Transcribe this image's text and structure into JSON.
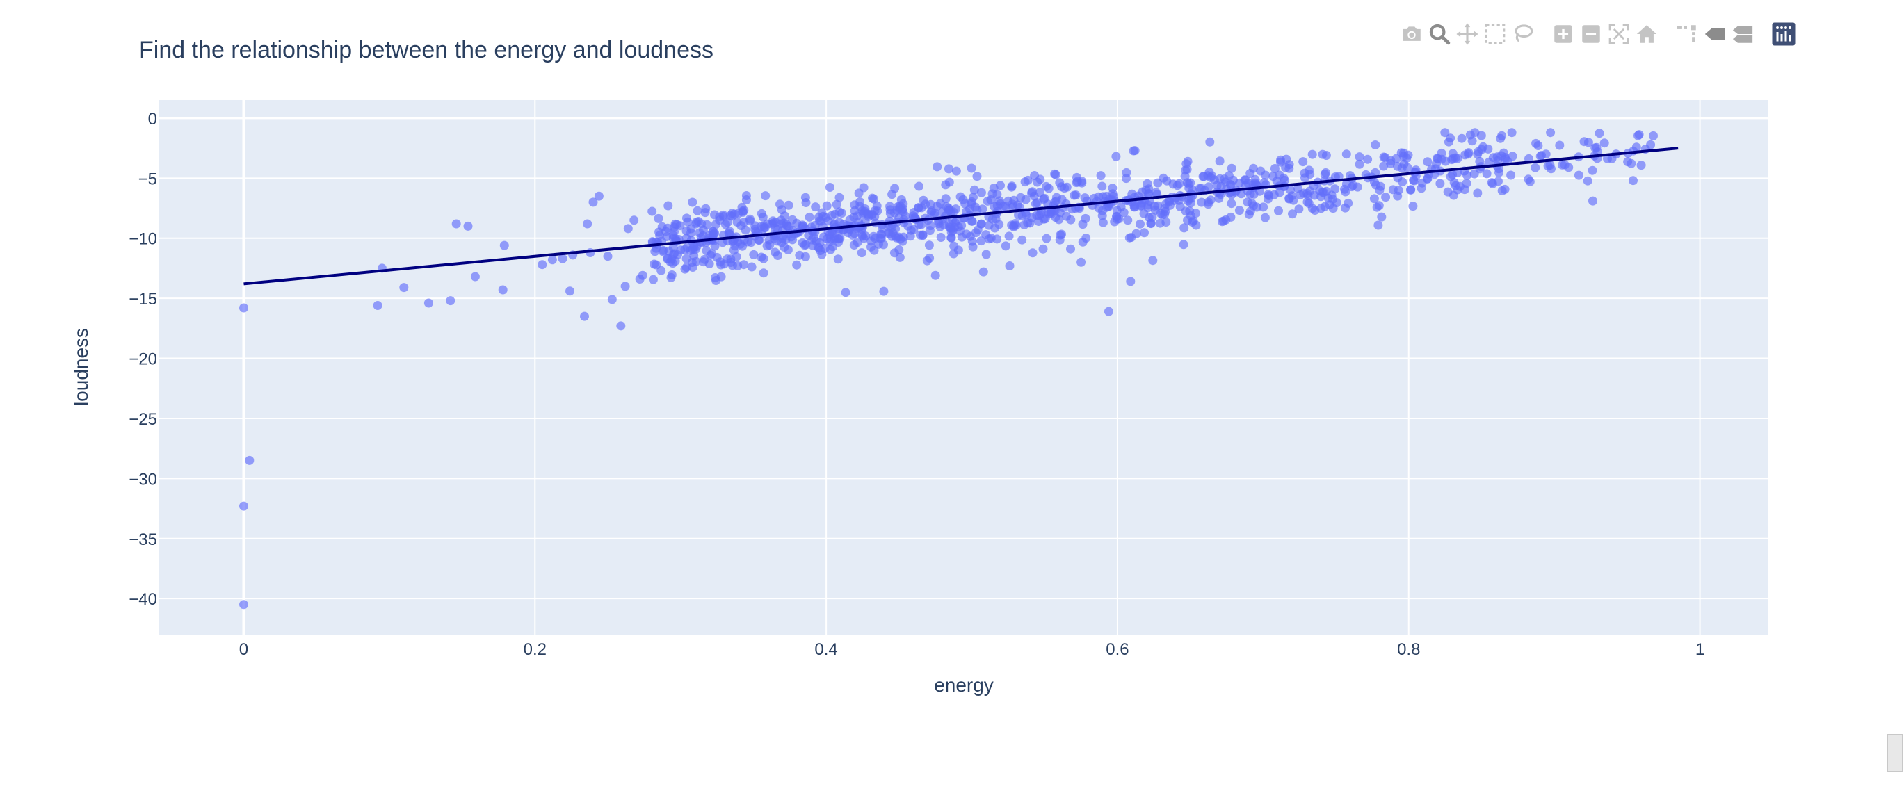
{
  "modebar": {
    "buttons": [
      {
        "name": "download-plot-camera-icon",
        "group": 0
      },
      {
        "name": "zoom-icon",
        "group": 0,
        "active": true
      },
      {
        "name": "pan-icon",
        "group": 0
      },
      {
        "name": "box-select-icon",
        "group": 0
      },
      {
        "name": "lasso-select-icon",
        "group": 0
      },
      {
        "name": "zoom-in-icon",
        "group": 1
      },
      {
        "name": "zoom-out-icon",
        "group": 1
      },
      {
        "name": "autoscale-icon",
        "group": 1
      },
      {
        "name": "reset-axes-home-icon",
        "group": 1
      },
      {
        "name": "toggle-spike-lines-icon",
        "group": 2
      },
      {
        "name": "show-closest-hover-icon",
        "group": 2
      },
      {
        "name": "compare-hover-icon",
        "group": 2
      }
    ],
    "icon_color": "#c4c4c4",
    "active_icon_color": "#8c8c8c",
    "logo_color": "#3f4f75"
  },
  "chart_data": {
    "type": "scatter",
    "title": "Find the relationship between the energy and loudness",
    "xlabel": "energy",
    "ylabel": "loudness",
    "xlim": [
      -0.058,
      1.047
    ],
    "ylim": [
      -43.0,
      1.5
    ],
    "xticks": [
      0,
      0.2,
      0.4,
      0.6,
      0.8,
      1
    ],
    "xtick_labels": [
      "0",
      "0.2",
      "0.4",
      "0.6",
      "0.8",
      "1"
    ],
    "yticks": [
      0,
      -5,
      -10,
      -15,
      -20,
      -25,
      -30,
      -35,
      -40
    ],
    "ytick_labels": [
      "0",
      "−5",
      "−10",
      "−15",
      "−20",
      "−25",
      "−30",
      "−35",
      "−40"
    ],
    "grid": true,
    "plot_bgcolor": "#e5ecf6",
    "marker_color": "#636efa",
    "marker_opacity": 0.65,
    "trendline_color": "#000080",
    "trendline": {
      "x": [
        0.0,
        0.985
      ],
      "y": [
        -13.8,
        -2.5
      ]
    },
    "outliers": {
      "x": [
        0.0,
        0.0,
        0.0,
        0.004,
        0.092,
        0.095,
        0.11,
        0.127,
        0.142,
        0.146,
        0.154,
        0.159,
        0.178,
        0.179,
        0.205,
        0.212,
        0.219,
        0.224,
        0.226,
        0.234,
        0.236,
        0.238,
        0.24,
        0.244,
        0.25,
        0.253,
        0.259,
        0.262,
        0.264,
        0.268,
        0.272,
        0.274,
        0.357,
        0.357,
        0.594,
        0.609,
        0.612,
        0.475,
        0.575,
        0.508,
        0.526
      ],
      "y": [
        -15.8,
        -32.3,
        -40.5,
        -28.5,
        -15.6,
        -12.5,
        -14.1,
        -15.4,
        -15.2,
        -8.8,
        -9.0,
        -13.2,
        -14.3,
        -10.6,
        -12.2,
        -11.8,
        -11.7,
        -14.4,
        -11.4,
        -16.5,
        -8.8,
        -11.2,
        -7.0,
        -6.5,
        -11.5,
        -15.1,
        -17.3,
        -14.0,
        -9.2,
        -8.5,
        -13.4,
        -13.1,
        -12.9,
        -11.7,
        -16.1,
        -13.6,
        -2.7,
        -13.1,
        -12.0,
        -12.8,
        -12.3
      ]
    },
    "bulk": {
      "count": 1080,
      "x_range": [
        0.28,
        0.99
      ],
      "y_min": -16.0,
      "y_max": -1.2,
      "spread": 1.35
    }
  }
}
